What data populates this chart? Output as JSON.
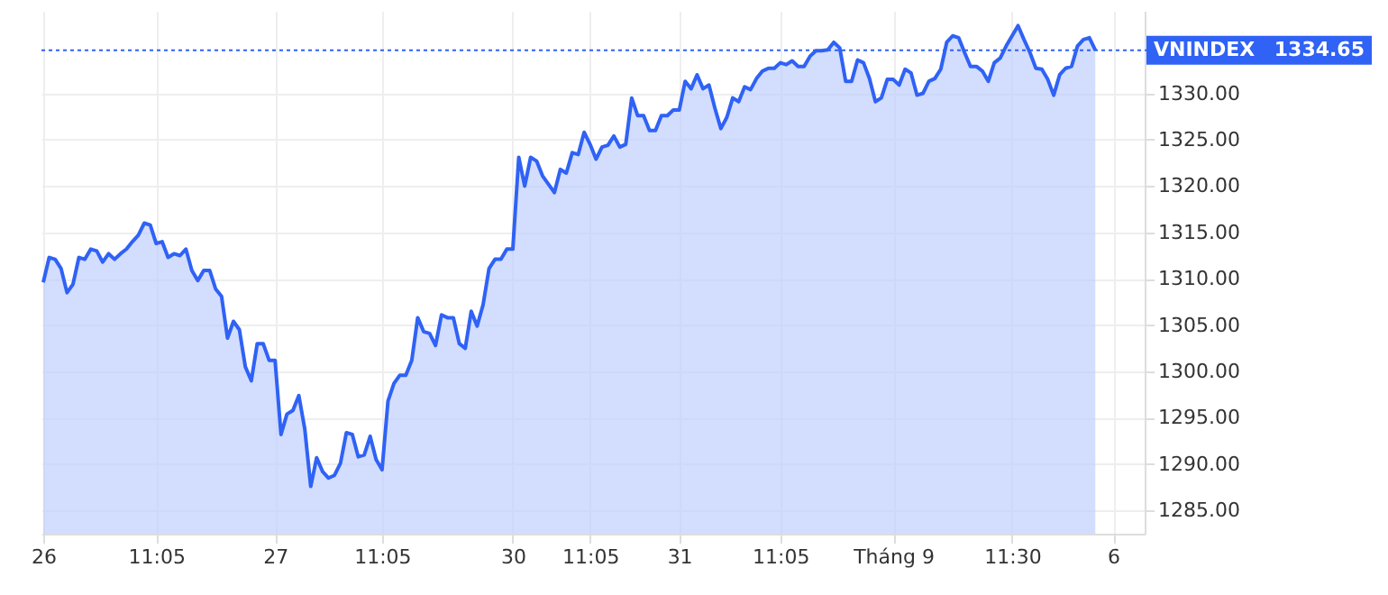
{
  "chart_data": {
    "type": "area",
    "categories": [
      "26",
      null,
      null,
      null,
      null,
      null,
      null,
      null,
      null,
      null,
      null,
      null,
      null,
      null,
      null,
      null,
      null,
      null,
      null,
      "11:05",
      null,
      null,
      null,
      null,
      null,
      null,
      null,
      null,
      null,
      null,
      null,
      null,
      null,
      null,
      null,
      null,
      null,
      null,
      null,
      "27",
      null,
      null,
      null,
      null,
      null,
      null,
      null,
      null,
      null,
      null,
      null,
      null,
      null,
      null,
      null,
      null,
      null,
      "11:05",
      null,
      null,
      null,
      null,
      null,
      null,
      null,
      null,
      null,
      null,
      null,
      null,
      null,
      null,
      null,
      null,
      null,
      null,
      null,
      null,
      null,
      "30",
      null,
      null,
      null,
      null,
      null,
      null,
      null,
      null,
      null,
      null,
      null,
      null,
      "11:05",
      null,
      null,
      null,
      null,
      null,
      null,
      null,
      null,
      null,
      null,
      null,
      null,
      null,
      null,
      "31",
      null,
      null,
      null,
      null,
      null,
      null,
      null,
      null,
      null,
      null,
      null,
      null,
      null,
      null,
      null,
      null,
      "11:05",
      null,
      null,
      null,
      null,
      null,
      null,
      null,
      null,
      null,
      null,
      null,
      null,
      null,
      null,
      null,
      null,
      null,
      null,
      "Tháng 9",
      null,
      null,
      null,
      null,
      null,
      null,
      null,
      null,
      null,
      null,
      null,
      null,
      null,
      null,
      null,
      null,
      null,
      null,
      null,
      "11:30",
      null,
      null,
      null,
      null,
      null,
      null,
      null,
      null,
      null,
      null,
      null,
      null,
      null,
      null,
      null,
      null,
      "6",
      null,
      null,
      null,
      null,
      null
    ],
    "series": [
      {
        "name": "VNINDEX",
        "color": "#2f62f5",
        "values": [
          1309.6,
          1312.3,
          1312.1,
          1311.1,
          1308.5,
          1309.4,
          1312.3,
          1312.1,
          1313.2,
          1313.0,
          1311.8,
          1312.7,
          1312.1,
          1312.7,
          1313.2,
          1314.0,
          1314.7,
          1316.0,
          1315.8,
          1313.8,
          1314.0,
          1312.3,
          1312.7,
          1312.5,
          1313.2,
          1310.9,
          1309.8,
          1310.9,
          1310.9,
          1308.9,
          1308.1,
          1303.6,
          1305.4,
          1304.5,
          1300.5,
          1299.0,
          1303.0,
          1303.0,
          1301.2,
          1301.2,
          1293.2,
          1295.4,
          1295.8,
          1297.4,
          1293.8,
          1287.6,
          1290.7,
          1289.2,
          1288.5,
          1288.8,
          1290.1,
          1293.4,
          1293.2,
          1290.8,
          1291.0,
          1293.0,
          1290.5,
          1289.4,
          1296.8,
          1298.7,
          1299.6,
          1299.6,
          1301.2,
          1305.8,
          1304.3,
          1304.1,
          1302.8,
          1306.1,
          1305.8,
          1305.8,
          1303.0,
          1302.5,
          1306.5,
          1304.9,
          1307.2,
          1311.1,
          1312.1,
          1312.1,
          1313.2,
          1313.2,
          1323.1,
          1320.0,
          1323.1,
          1322.7,
          1321.1,
          1320.2,
          1319.3,
          1321.8,
          1321.4,
          1323.6,
          1323.4,
          1325.8,
          1324.5,
          1322.9,
          1324.2,
          1324.4,
          1325.4,
          1324.2,
          1324.5,
          1329.5,
          1327.6,
          1327.6,
          1326.0,
          1326.0,
          1327.6,
          1327.6,
          1328.2,
          1328.2,
          1331.3,
          1330.5,
          1332.0,
          1330.5,
          1330.9,
          1328.4,
          1326.2,
          1327.4,
          1329.5,
          1329.1,
          1330.7,
          1330.4,
          1331.6,
          1332.4,
          1332.7,
          1332.7,
          1333.3,
          1333.1,
          1333.5,
          1332.9,
          1332.9,
          1334.0,
          1334.6,
          1334.6,
          1334.7,
          1335.5,
          1334.9,
          1331.3,
          1331.3,
          1333.6,
          1333.3,
          1331.6,
          1329.1,
          1329.5,
          1331.5,
          1331.5,
          1330.9,
          1332.6,
          1332.2,
          1329.8,
          1330.0,
          1331.3,
          1331.6,
          1332.6,
          1335.5,
          1336.2,
          1336.0,
          1334.4,
          1332.9,
          1332.9,
          1332.4,
          1331.3,
          1333.3,
          1333.8,
          1335.1,
          1336.2,
          1337.3,
          1335.8,
          1334.4,
          1332.7,
          1332.6,
          1331.5,
          1329.8,
          1332.0,
          1332.7,
          1332.9,
          1335.1,
          1335.8,
          1336.0,
          1334.65,
          null,
          null,
          null,
          null,
          null,
          null,
          null,
          null
        ]
      }
    ],
    "ylim": [
      1282.5,
      1338.9
    ],
    "yticks": [
      {
        "value": 1285,
        "label": "1285.00"
      },
      {
        "value": 1290,
        "label": "1290.00"
      },
      {
        "value": 1295,
        "label": "1295.00"
      },
      {
        "value": 1300,
        "label": "1300.00"
      },
      {
        "value": 1305,
        "label": "1305.00"
      },
      {
        "value": 1310,
        "label": "1310.00"
      },
      {
        "value": 1315,
        "label": "1315.00"
      },
      {
        "value": 1320,
        "label": "1320.00"
      },
      {
        "value": 1325,
        "label": "1325.00"
      },
      {
        "value": 1330,
        "label": "1330.00"
      }
    ],
    "ref_lines": [
      {
        "axis": "y",
        "value": 1334.65,
        "label": "1334.65",
        "color": "#2f62f5",
        "line_style": "dotted"
      }
    ],
    "grid": true
  }
}
